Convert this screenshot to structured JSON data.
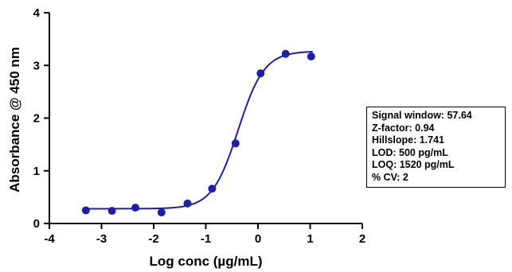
{
  "chart_data": {
    "type": "scatter",
    "xlabel": "Log conc (µg/mL)",
    "ylabel": "Absorbance @ 450 nm",
    "xlim": [
      -4,
      2
    ],
    "ylim": [
      0,
      4
    ],
    "xticks": [
      -4,
      -3,
      -2,
      -1,
      0,
      1,
      2
    ],
    "yticks": [
      0,
      1,
      2,
      3,
      4
    ],
    "grid": false,
    "marker_color": "#1f1fa6",
    "line_color": "#1f1fa6",
    "points": [
      {
        "x": -3.3,
        "y": 0.25
      },
      {
        "x": -2.8,
        "y": 0.24
      },
      {
        "x": -2.35,
        "y": 0.3
      },
      {
        "x": -1.85,
        "y": 0.21
      },
      {
        "x": -1.35,
        "y": 0.38
      },
      {
        "x": -0.88,
        "y": 0.66
      },
      {
        "x": -0.43,
        "y": 1.52
      },
      {
        "x": 0.05,
        "y": 2.85
      },
      {
        "x": 0.53,
        "y": 3.22
      },
      {
        "x": 1.02,
        "y": 3.17
      }
    ],
    "fit": {
      "model": "4PL",
      "bottom": 0.28,
      "top": 3.27,
      "logEC50": -0.38,
      "hillslope": 1.741,
      "x_range": [
        -3.3,
        1.05
      ]
    },
    "annotation": [
      "Signal window: 57.64",
      "Z-factor: 0.94",
      "Hillslope: 1.741",
      "LOD: 500 pg/mL",
      "LOQ: 1520 pg/mL",
      "% CV: 2"
    ]
  }
}
